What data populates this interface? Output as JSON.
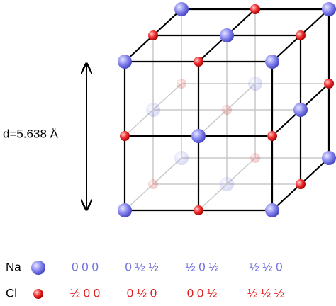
{
  "dimension_label": "d=5.638 Å",
  "legend": [
    {
      "element": "Na",
      "positions": [
        "0 0 0",
        "0 ½ ½",
        "½ 0 ½",
        "½ ½ 0"
      ]
    },
    {
      "element": "Cl",
      "positions": [
        "½ 0 0",
        "0 ½ 0",
        "0 0 ½",
        "½ ½ ½"
      ]
    }
  ]
}
